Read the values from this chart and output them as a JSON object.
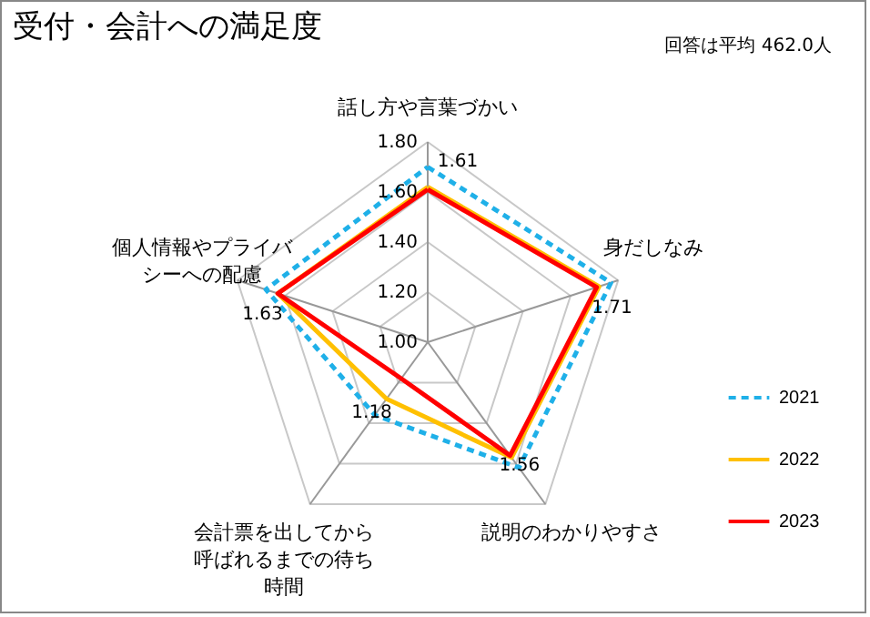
{
  "chart_data": {
    "type": "radar",
    "title": "受付・会計への満足度",
    "annotations": [
      "回答は平均 462.0人"
    ],
    "categories": [
      "話し方や言葉づかい",
      "身だしなみ",
      "説明のわかりやすさ",
      "会計票を出してから呼ばれるまでの待ち時間",
      "個人情報やプライバシーへの配慮"
    ],
    "series": [
      {
        "name": "2021",
        "color": "#1fb0e8",
        "line_style": "dashed",
        "values": [
          1.7,
          1.77,
          1.62,
          1.36,
          1.68
        ]
      },
      {
        "name": "2022",
        "color": "#ffc000",
        "values": [
          1.62,
          1.72,
          1.57,
          1.28,
          1.63
        ]
      },
      {
        "name": "2023",
        "color": "#ff0000",
        "values": [
          1.61,
          1.71,
          1.56,
          1.18,
          1.63
        ],
        "value_labels": [
          "1.61",
          "1.71",
          "1.56",
          "1.18",
          "1.63"
        ]
      }
    ],
    "ylim": [
      1.0,
      1.8
    ],
    "yticks": [
      {
        "value": 1.0,
        "label": "1.00"
      },
      {
        "value": 1.2,
        "label": "1.20"
      },
      {
        "value": 1.4,
        "label": "1.40"
      },
      {
        "value": 1.6,
        "label": "1.60"
      },
      {
        "value": 1.8,
        "label": "1.80"
      }
    ],
    "grid": true,
    "legend": "right"
  }
}
